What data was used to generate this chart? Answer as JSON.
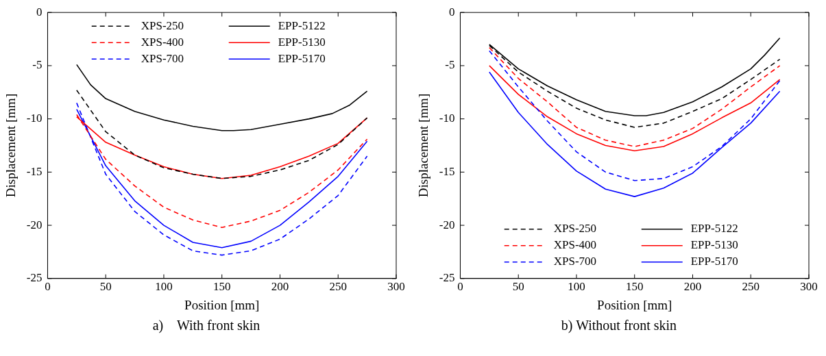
{
  "chart_data": [
    {
      "type": "line",
      "xlabel": "Position [mm]",
      "ylabel": "Displacement [mm]",
      "annotations": [
        "a)    With front skin"
      ],
      "xlim": [
        0,
        300
      ],
      "xticks": [
        0,
        50,
        100,
        150,
        200,
        250,
        300
      ],
      "ylim": [
        -25,
        0
      ],
      "yticks": [
        -25,
        -20,
        -15,
        -10,
        -5,
        0
      ],
      "grid": false,
      "legend": "top",
      "marker": "none",
      "series": [
        {
          "name": "XPS-250",
          "color": "#000000",
          "line_style": "dashed",
          "x": [
            25,
            50,
            75,
            100,
            125,
            150,
            175,
            200,
            225,
            250,
            275
          ],
          "values": [
            -7.3,
            -11.2,
            -13.4,
            -14.6,
            -15.2,
            -15.6,
            -15.4,
            -14.8,
            -13.9,
            -12.4,
            -9.9
          ]
        },
        {
          "name": "XPS-400",
          "color": "#ff0000",
          "line_style": "dashed",
          "x": [
            25,
            50,
            75,
            100,
            125,
            150,
            175,
            200,
            225,
            250,
            275
          ],
          "values": [
            -9.6,
            -13.8,
            -16.3,
            -18.3,
            -19.5,
            -20.2,
            -19.6,
            -18.6,
            -16.9,
            -14.8,
            -11.9
          ]
        },
        {
          "name": "XPS-700",
          "color": "#0000ff",
          "line_style": "dashed",
          "x": [
            25,
            50,
            75,
            100,
            125,
            150,
            175,
            200,
            225,
            250,
            275
          ],
          "values": [
            -8.5,
            -15.2,
            -18.7,
            -20.9,
            -22.4,
            -22.8,
            -22.4,
            -21.3,
            -19.4,
            -17.2,
            -13.5
          ]
        },
        {
          "name": "EPP-5122",
          "color": "#000000",
          "line_style": "solid",
          "x": [
            25,
            37,
            50,
            75,
            100,
            125,
            150,
            160,
            175,
            200,
            225,
            245,
            260,
            275
          ],
          "values": [
            -4.9,
            -6.8,
            -8.1,
            -9.3,
            -10.1,
            -10.7,
            -11.1,
            -11.1,
            -11.0,
            -10.5,
            -10.0,
            -9.5,
            -8.7,
            -7.4
          ]
        },
        {
          "name": "EPP-5130",
          "color": "#ff0000",
          "line_style": "solid",
          "x": [
            25,
            50,
            75,
            100,
            125,
            150,
            175,
            200,
            225,
            250,
            275
          ],
          "values": [
            -9.8,
            -12.2,
            -13.4,
            -14.5,
            -15.2,
            -15.6,
            -15.3,
            -14.5,
            -13.5,
            -12.3,
            -9.9
          ]
        },
        {
          "name": "EPP-5170",
          "color": "#0000ff",
          "line_style": "solid",
          "x": [
            25,
            50,
            75,
            100,
            125,
            150,
            175,
            200,
            225,
            250,
            275
          ],
          "values": [
            -9.1,
            -14.4,
            -17.7,
            -20.0,
            -21.6,
            -22.1,
            -21.5,
            -20.0,
            -17.8,
            -15.4,
            -12.1
          ]
        }
      ]
    },
    {
      "type": "line",
      "xlabel": "Position [mm]",
      "ylabel": "Displacement [mm]",
      "annotations": [
        "b) Without front skin"
      ],
      "xlim": [
        0,
        300
      ],
      "xticks": [
        0,
        50,
        100,
        150,
        200,
        250,
        300
      ],
      "ylim": [
        -25,
        0
      ],
      "yticks": [
        -25,
        -20,
        -15,
        -10,
        -5,
        0
      ],
      "grid": false,
      "legend": "bottom",
      "marker": "none",
      "series": [
        {
          "name": "XPS-250",
          "color": "#000000",
          "line_style": "dashed",
          "x": [
            25,
            50,
            75,
            100,
            125,
            150,
            175,
            200,
            225,
            250,
            275
          ],
          "values": [
            -3.1,
            -5.6,
            -7.4,
            -9.0,
            -10.1,
            -10.8,
            -10.4,
            -9.3,
            -8.1,
            -6.3,
            -4.4
          ]
        },
        {
          "name": "XPS-400",
          "color": "#ff0000",
          "line_style": "dashed",
          "x": [
            25,
            50,
            75,
            100,
            125,
            150,
            175,
            200,
            225,
            250,
            275
          ],
          "values": [
            -3.3,
            -6.2,
            -8.4,
            -10.8,
            -12.0,
            -12.6,
            -12.0,
            -10.9,
            -9.1,
            -7.0,
            -5.0
          ]
        },
        {
          "name": "XPS-700",
          "color": "#0000ff",
          "line_style": "dashed",
          "x": [
            25,
            50,
            75,
            100,
            125,
            150,
            175,
            200,
            225,
            250,
            275
          ],
          "values": [
            -3.6,
            -7.0,
            -10.2,
            -13.1,
            -15.0,
            -15.8,
            -15.6,
            -14.5,
            -12.6,
            -10.0,
            -6.4
          ]
        },
        {
          "name": "EPP-5122",
          "color": "#000000",
          "line_style": "solid",
          "x": [
            25,
            50,
            75,
            100,
            125,
            150,
            160,
            175,
            200,
            225,
            250,
            262,
            275
          ],
          "values": [
            -3.0,
            -5.3,
            -6.9,
            -8.2,
            -9.3,
            -9.7,
            -9.7,
            -9.4,
            -8.4,
            -7.0,
            -5.3,
            -4.0,
            -2.4
          ]
        },
        {
          "name": "EPP-5130",
          "color": "#ff0000",
          "line_style": "solid",
          "x": [
            25,
            50,
            75,
            100,
            125,
            150,
            175,
            200,
            225,
            250,
            275
          ],
          "values": [
            -5.0,
            -7.7,
            -9.8,
            -11.4,
            -12.5,
            -13.0,
            -12.6,
            -11.4,
            -9.9,
            -8.5,
            -6.3
          ]
        },
        {
          "name": "EPP-5170",
          "color": "#0000ff",
          "line_style": "solid",
          "x": [
            25,
            50,
            75,
            100,
            125,
            150,
            175,
            200,
            225,
            250,
            275
          ],
          "values": [
            -5.6,
            -9.4,
            -12.4,
            -14.9,
            -16.6,
            -17.3,
            -16.5,
            -15.1,
            -12.7,
            -10.4,
            -7.4
          ]
        }
      ]
    }
  ]
}
